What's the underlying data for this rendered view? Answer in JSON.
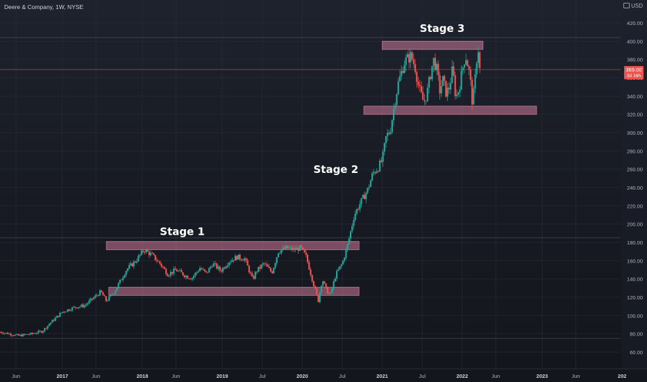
{
  "header": {
    "symbol_title": "Deere & Company, 1W, NYSE",
    "currency": "USD"
  },
  "colors": {
    "up": "#26a69a",
    "down": "#ef5350",
    "zone_fill": "#f48fb1",
    "zone_stroke": "#f48fb1",
    "text": "#b2b5be",
    "price_badge": "#ef5350",
    "grid": "#2a2e39"
  },
  "chart_data": {
    "type": "candlestick",
    "title": "Deere & Company, 1W, NYSE",
    "xlabel": "",
    "ylabel": "USD",
    "ylim": [
      50,
      430
    ],
    "xlim": [
      2016.22,
      2023.0
    ],
    "grid": true,
    "y_ticks": [
      "420.00",
      "400.00",
      "380.00",
      "360.00",
      "340.00",
      "320.00",
      "300.00",
      "280.00",
      "260.00",
      "240.00",
      "220.00",
      "200.00",
      "180.00",
      "160.00",
      "140.00",
      "120.00",
      "100.00",
      "80.00",
      "60.00"
    ],
    "x_ticks": [
      {
        "label": "Jun",
        "t": 2016.42
      },
      {
        "label": "2017",
        "t": 2017.0
      },
      {
        "label": "Jun",
        "t": 2017.42
      },
      {
        "label": "2018",
        "t": 2018.0
      },
      {
        "label": "Jun",
        "t": 2018.42
      },
      {
        "label": "2019",
        "t": 2019.0
      },
      {
        "label": "Jul",
        "t": 2019.5
      },
      {
        "label": "2020",
        "t": 2020.0
      },
      {
        "label": "Jul",
        "t": 2020.5
      },
      {
        "label": "2021",
        "t": 2021.0
      },
      {
        "label": "Jul",
        "t": 2021.5
      },
      {
        "label": "2022",
        "t": 2022.0
      },
      {
        "label": "Jun",
        "t": 2022.42
      },
      {
        "label": "2023",
        "t": 2023.0
      },
      {
        "label": "Jun",
        "t": 2023.42
      },
      {
        "label": "202",
        "t": 2024.0
      }
    ],
    "price_path": [
      [
        2016.22,
        82
      ],
      [
        2016.45,
        78
      ],
      [
        2016.62,
        80
      ],
      [
        2016.75,
        83
      ],
      [
        2016.85,
        92
      ],
      [
        2017.0,
        104
      ],
      [
        2017.15,
        109
      ],
      [
        2017.28,
        111
      ],
      [
        2017.4,
        120
      ],
      [
        2017.48,
        126
      ],
      [
        2017.55,
        116
      ],
      [
        2017.65,
        126
      ],
      [
        2017.8,
        150
      ],
      [
        2017.92,
        160
      ],
      [
        2018.02,
        172
      ],
      [
        2018.12,
        166
      ],
      [
        2018.22,
        157
      ],
      [
        2018.32,
        145
      ],
      [
        2018.42,
        150
      ],
      [
        2018.55,
        143
      ],
      [
        2018.62,
        141
      ],
      [
        2018.72,
        152
      ],
      [
        2018.8,
        146
      ],
      [
        2018.88,
        157
      ],
      [
        2018.98,
        149
      ],
      [
        2019.08,
        159
      ],
      [
        2019.18,
        164
      ],
      [
        2019.28,
        162
      ],
      [
        2019.38,
        139
      ],
      [
        2019.42,
        148
      ],
      [
        2019.52,
        157
      ],
      [
        2019.62,
        147
      ],
      [
        2019.7,
        170
      ],
      [
        2019.8,
        174
      ],
      [
        2019.9,
        172
      ],
      [
        2019.98,
        174
      ],
      [
        2020.05,
        164
      ],
      [
        2020.13,
        138
      ],
      [
        2020.2,
        116
      ],
      [
        2020.25,
        140
      ],
      [
        2020.3,
        128
      ],
      [
        2020.35,
        122
      ],
      [
        2020.42,
        145
      ],
      [
        2020.5,
        157
      ],
      [
        2020.57,
        178
      ],
      [
        2020.65,
        210
      ],
      [
        2020.72,
        222
      ],
      [
        2020.82,
        238
      ],
      [
        2020.88,
        255
      ],
      [
        2020.95,
        262
      ],
      [
        2021.0,
        270
      ],
      [
        2021.05,
        296
      ],
      [
        2021.1,
        302
      ],
      [
        2021.15,
        330
      ],
      [
        2021.2,
        354
      ],
      [
        2021.28,
        378
      ],
      [
        2021.36,
        384
      ],
      [
        2021.41,
        372
      ],
      [
        2021.46,
        348
      ],
      [
        2021.52,
        333
      ],
      [
        2021.56,
        343
      ],
      [
        2021.6,
        362
      ],
      [
        2021.64,
        380
      ],
      [
        2021.68,
        370
      ],
      [
        2021.72,
        346
      ],
      [
        2021.76,
        358
      ],
      [
        2021.8,
        343
      ],
      [
        2021.84,
        350
      ],
      [
        2021.88,
        370
      ],
      [
        2021.92,
        338
      ],
      [
        2021.96,
        348
      ],
      [
        2022.0,
        368
      ],
      [
        2022.04,
        385
      ],
      [
        2022.06,
        378
      ],
      [
        2022.1,
        360
      ],
      [
        2022.12,
        334
      ],
      [
        2022.15,
        345
      ],
      [
        2022.18,
        380
      ],
      [
        2022.2,
        392
      ],
      [
        2022.22,
        369
      ]
    ],
    "last_price": "369.00",
    "countdown": "3d 16h",
    "zones": [
      {
        "name": "stage-1-resistance",
        "y_low": 172,
        "y_high": 181,
        "t_start": 2017.55,
        "t_end": 2020.71
      },
      {
        "name": "stage-1-support",
        "y_low": 122,
        "y_high": 131,
        "t_start": 2017.58,
        "t_end": 2020.71
      },
      {
        "name": "stage-3-resistance",
        "y_low": 391,
        "y_high": 400,
        "t_start": 2021.0,
        "t_end": 2022.26
      },
      {
        "name": "stage-3-support",
        "y_low": 320,
        "y_high": 329,
        "t_start": 2020.77,
        "t_end": 2022.93
      }
    ],
    "annotations": [
      {
        "text": "Stage 1",
        "t": 2018.5,
        "y": 188
      },
      {
        "text": "Stage 2",
        "t": 2020.42,
        "y": 256
      },
      {
        "text": "Stage 3",
        "t": 2021.75,
        "y": 410
      }
    ],
    "reference_lines": [
      {
        "y": 185,
        "style": "solid"
      },
      {
        "y": 404,
        "style": "solid"
      },
      {
        "y": 369,
        "style": "price"
      },
      {
        "y": 75,
        "style": "solid"
      }
    ]
  }
}
